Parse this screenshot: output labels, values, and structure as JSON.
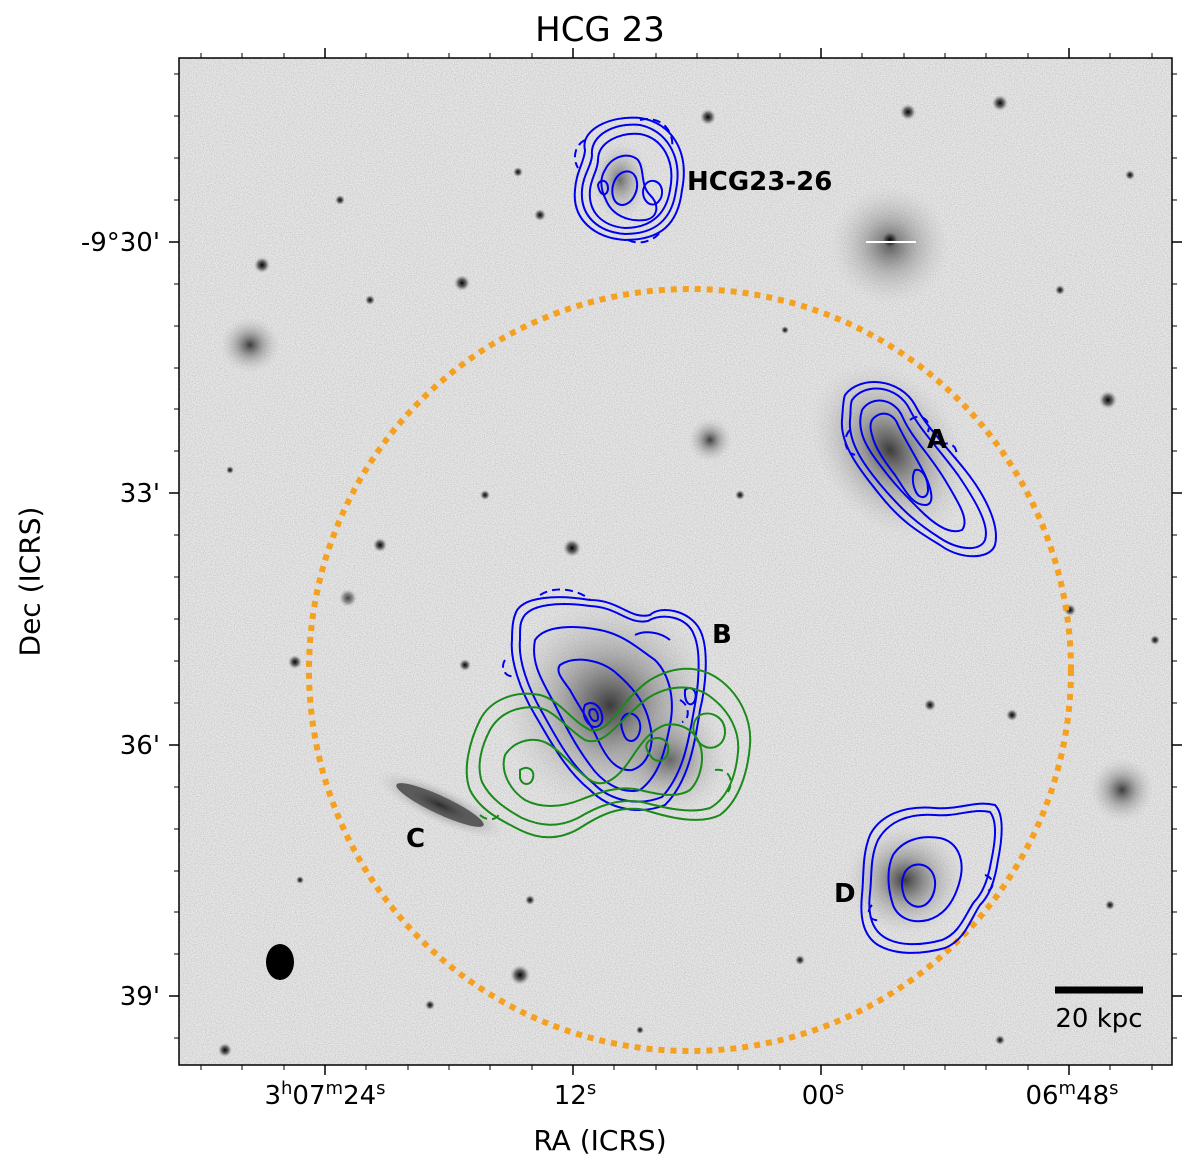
{
  "title": "HCG 23",
  "xlabel": "RA (ICRS)",
  "ylabel": "Dec (ICRS)",
  "x_ticks": [
    {
      "main": "3",
      "sup1": "h",
      "mid": "07",
      "sup2": "m",
      "end": "24",
      "sup3": "s"
    },
    {
      "main": "",
      "sup1": "",
      "mid": "",
      "sup2": "",
      "end": "12",
      "sup3": "s"
    },
    {
      "main": "",
      "sup1": "",
      "mid": "",
      "sup2": "",
      "end": "00",
      "sup3": "s"
    },
    {
      "main": "",
      "sup1": "",
      "mid": "06",
      "sup2": "m",
      "end": "48",
      "sup3": "s"
    }
  ],
  "y_ticks": [
    "-9°30'",
    "33'",
    "36'",
    "39'"
  ],
  "galaxy_labels": {
    "A": "A",
    "B": "B",
    "C": "C",
    "D": "D",
    "dwarf": "HCG23-26"
  },
  "scale_bar": "20 kpc",
  "colors": {
    "hi_contour_blue": "#0000ee",
    "hi_contour_green": "#1a8a1a",
    "search_circle": "#f5a020",
    "background": "#e6e6e6"
  }
}
